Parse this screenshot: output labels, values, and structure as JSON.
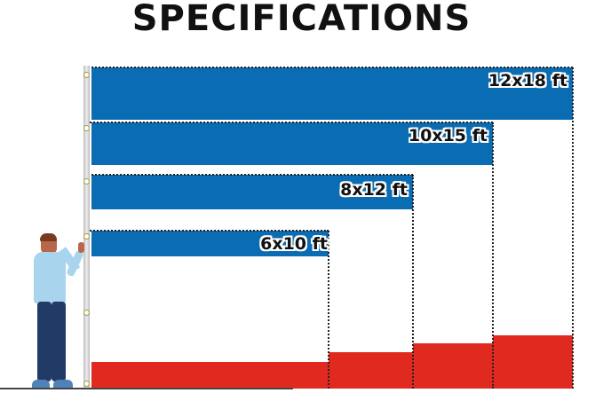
{
  "title": "SPECIFICATIONS",
  "sizes": [
    {
      "label": "12x18 ft"
    },
    {
      "label": "10x15 ft"
    },
    {
      "label": "8x12 ft"
    },
    {
      "label": "6x10 ft"
    }
  ],
  "colors": {
    "blue": "#0a6db3",
    "red": "#e02a1f",
    "white": "#ffffff"
  }
}
